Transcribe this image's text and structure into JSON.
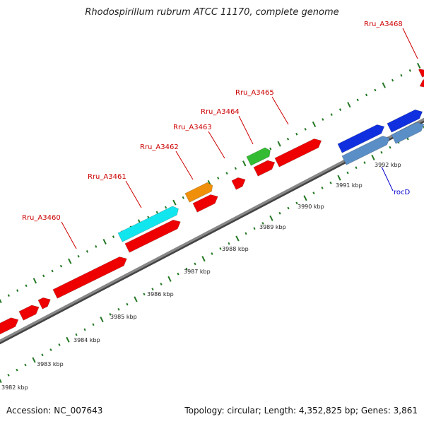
{
  "title": "Rhodospirillum rubrum ATCC 11170, complete genome",
  "footer": {
    "accession": "Accession: NC_007643",
    "topology": "Topology: circular; Length: 4,352,825 bp; Genes: 3,861"
  },
  "colors": {
    "forward_default": "#ee0000",
    "reverse_default": "#ee0000",
    "cyan": "#11e6ee",
    "orange": "#f0900a",
    "green": "#33bb33",
    "blue": "#1030e0",
    "steelblue": "#5a8ec6",
    "backbone": "#888888",
    "tick_green": "#227722"
  },
  "scale": {
    "unit": "kbp",
    "ticks": [
      {
        "label": "3982 kbp"
      },
      {
        "label": "3983 kbp"
      },
      {
        "label": "3984 kbp"
      },
      {
        "label": "3985 kbp"
      },
      {
        "label": "3986 kbp"
      },
      {
        "label": "3987 kbp"
      },
      {
        "label": "3988 kbp"
      },
      {
        "label": "3989 kbp"
      },
      {
        "label": "3990 kbp"
      },
      {
        "label": "3991 kbp"
      },
      {
        "label": "3992 kbp"
      }
    ]
  },
  "gene_labels": [
    {
      "text": "Rru_A3460"
    },
    {
      "text": "Rru_A3461"
    },
    {
      "text": "Rru_A3462"
    },
    {
      "text": "Rru_A3463"
    },
    {
      "text": "Rru_A3464"
    },
    {
      "text": "Rru_A3465"
    },
    {
      "text": "Rru_A3468"
    },
    {
      "text": "rocD"
    }
  ],
  "features": [
    {
      "color": "forward_default"
    },
    {
      "color": "forward_default"
    },
    {
      "color": "forward_default"
    },
    {
      "color": "forward_default"
    },
    {
      "color": "cyan"
    },
    {
      "color": "forward_default"
    },
    {
      "color": "orange"
    },
    {
      "color": "forward_default"
    },
    {
      "color": "forward_default"
    },
    {
      "color": "green"
    },
    {
      "color": "forward_default"
    },
    {
      "color": "forward_default"
    },
    {
      "color": "blue"
    },
    {
      "color": "steelblue"
    },
    {
      "color": "blue"
    },
    {
      "color": "steelblue"
    },
    {
      "color": "forward_default"
    },
    {
      "color": "forward_default"
    }
  ]
}
